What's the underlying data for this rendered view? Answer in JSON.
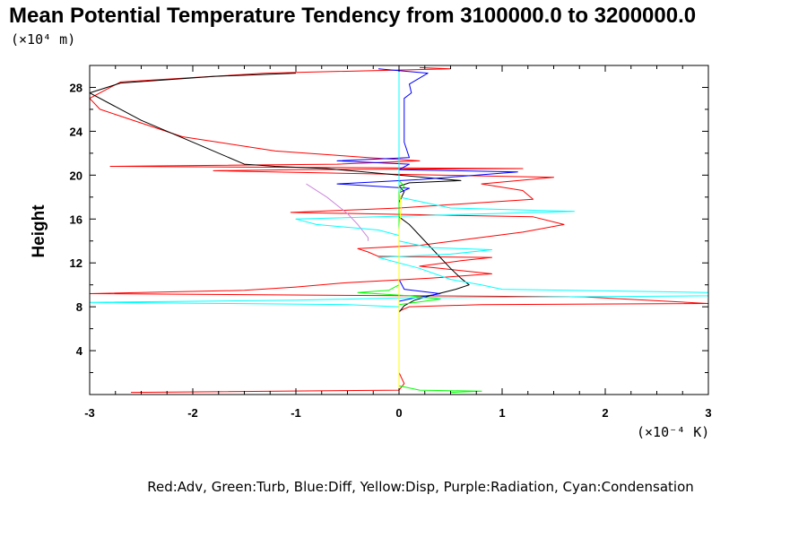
{
  "chart_data": {
    "type": "line",
    "title": "Mean Potential Temperature Tendency from 3100000.0 to 3200000.0",
    "y_scale_note": "(×10⁴ m)",
    "x_scale_note": "(×10⁻⁴ K)",
    "ylabel": "Height",
    "xlim": [
      -3,
      3
    ],
    "ylim": [
      0,
      30
    ],
    "x_ticks": [
      -3,
      -2,
      -1,
      0,
      1,
      2,
      3
    ],
    "x_tick_labels": [
      "-3",
      "-2",
      "-1",
      "0",
      "1",
      "2",
      "3"
    ],
    "y_ticks": [
      4,
      8,
      12,
      16,
      20,
      24,
      28
    ],
    "y_tick_labels": [
      "4",
      "8",
      "12",
      "16",
      "20",
      "24",
      "28"
    ],
    "legend_text": "Red:Adv, Green:Turb, Blue:Diff, Yellow:Disp, Purple:Radiation, Cyan:Condensation",
    "grid": false,
    "series": [
      {
        "color": "#ff0000",
        "points": [
          [
            -2.6,
            0.2
          ],
          [
            0,
            0.4
          ],
          [
            0.05,
            1.0
          ],
          [
            0,
            2.0
          ],
          [
            0,
            6.0
          ],
          [
            0,
            7.6
          ],
          [
            0.1,
            8.0
          ],
          [
            0.8,
            8.2
          ],
          [
            3,
            8.3
          ],
          [
            1.8,
            8.9
          ],
          [
            -3,
            9.2
          ],
          [
            -1.5,
            9.5
          ],
          [
            -1,
            9.8
          ],
          [
            -0.5,
            10.2
          ],
          [
            0.3,
            10.6
          ],
          [
            0.9,
            11.0
          ],
          [
            0.5,
            11.4
          ],
          [
            0.2,
            11.7
          ],
          [
            0.6,
            12.2
          ],
          [
            0.9,
            12.5
          ],
          [
            -0.2,
            12.6
          ],
          [
            -0.3,
            13.0
          ],
          [
            -0.4,
            13.3
          ],
          [
            0.2,
            13.6
          ],
          [
            0.7,
            14.2
          ],
          [
            1.2,
            14.8
          ],
          [
            1.6,
            15.5
          ],
          [
            1.3,
            16.2
          ],
          [
            -1.05,
            16.6
          ],
          [
            0,
            17.0
          ],
          [
            1.3,
            17.8
          ],
          [
            1.2,
            18.6
          ],
          [
            0.8,
            19.2
          ],
          [
            1.5,
            19.8
          ],
          [
            -1.8,
            20.4
          ],
          [
            -1.0,
            20.5
          ],
          [
            1.2,
            20.6
          ],
          [
            -2.8,
            20.8
          ],
          [
            -0.6,
            21.0
          ],
          [
            0.2,
            21.3
          ],
          [
            -0.3,
            21.6
          ],
          [
            -0.6,
            21.8
          ],
          [
            -1.2,
            22.2
          ],
          [
            -2.1,
            23.5
          ],
          [
            -2.9,
            26.0
          ],
          [
            -3.0,
            27.0
          ],
          [
            -2.7,
            28.5
          ],
          [
            -1.3,
            29.3
          ],
          [
            0.5,
            29.7
          ],
          [
            0.2,
            29.8
          ]
        ]
      },
      {
        "color": "#000000",
        "points": [
          [
            0,
            0.2
          ],
          [
            0,
            5.0
          ],
          [
            0,
            7.5
          ],
          [
            0.05,
            8.1
          ],
          [
            0.15,
            8.6
          ],
          [
            0.3,
            9.0
          ],
          [
            0.55,
            9.6
          ],
          [
            0.68,
            10.0
          ],
          [
            0.6,
            10.6
          ],
          [
            0.5,
            11.5
          ],
          [
            0.4,
            12.5
          ],
          [
            0.3,
            13.5
          ],
          [
            0.2,
            14.5
          ],
          [
            0.15,
            15.0
          ],
          [
            0.1,
            15.5
          ],
          [
            0.0,
            16.2
          ],
          [
            0.0,
            17.5
          ],
          [
            0.05,
            18.5
          ],
          [
            0.0,
            19.0
          ],
          [
            0.1,
            19.3
          ],
          [
            0.6,
            19.5
          ],
          [
            -0.7,
            20.6
          ],
          [
            -1.2,
            20.8
          ],
          [
            -1.5,
            21.0
          ],
          [
            -2.0,
            23.0
          ],
          [
            -2.5,
            25.0
          ],
          [
            -3.0,
            27.5
          ],
          [
            -2.7,
            28.4
          ],
          [
            -1.8,
            29.0
          ],
          [
            -1.0,
            29.3
          ]
        ]
      },
      {
        "color": "#0000ff",
        "points": [
          [
            0,
            0.2
          ],
          [
            0,
            8.5
          ],
          [
            0.15,
            8.8
          ],
          [
            0.4,
            9.2
          ],
          [
            0.05,
            9.6
          ],
          [
            0,
            10.5
          ],
          [
            0,
            18.4
          ],
          [
            0.1,
            18.8
          ],
          [
            -0.6,
            19.2
          ],
          [
            0.2,
            19.6
          ],
          [
            1.15,
            20.3
          ],
          [
            0,
            20.5
          ],
          [
            0.1,
            21.0
          ],
          [
            -0.6,
            21.3
          ],
          [
            0.1,
            21.6
          ],
          [
            0.05,
            23.0
          ],
          [
            0.05,
            25.0
          ],
          [
            0.05,
            27.0
          ],
          [
            0.12,
            27.5
          ],
          [
            0.1,
            28.3
          ],
          [
            0.28,
            29.3
          ],
          [
            -0.2,
            29.7
          ]
        ]
      },
      {
        "color": "#00ffff",
        "points": [
          [
            0,
            0.3
          ],
          [
            0,
            8.0
          ],
          [
            -0.5,
            8.2
          ],
          [
            -3.0,
            8.4
          ],
          [
            -1.0,
            8.6
          ],
          [
            0,
            8.8
          ],
          [
            3.0,
            9.0
          ],
          [
            3.0,
            9.3
          ],
          [
            1.0,
            9.6
          ],
          [
            0.8,
            10.0
          ],
          [
            0.5,
            10.5
          ],
          [
            0.2,
            11.5
          ],
          [
            -0.2,
            12.5
          ],
          [
            0.5,
            12.8
          ],
          [
            0.9,
            13.2
          ],
          [
            0.3,
            13.4
          ],
          [
            0,
            14.0
          ],
          [
            0,
            14.5
          ],
          [
            -0.2,
            15.0
          ],
          [
            -0.8,
            15.5
          ],
          [
            -1.0,
            16.0
          ],
          [
            1.7,
            16.7
          ],
          [
            0.5,
            17.0
          ],
          [
            0,
            18.0
          ],
          [
            0,
            20.0
          ],
          [
            0,
            25.0
          ],
          [
            0,
            29.8
          ]
        ]
      },
      {
        "color": "#00ff00",
        "points": [
          [
            0.5,
            0.2
          ],
          [
            0.8,
            0.3
          ],
          [
            0.2,
            0.4
          ],
          [
            0,
            0.8
          ],
          [
            0,
            7.6
          ],
          [
            0,
            8.2
          ],
          [
            0.4,
            8.7
          ],
          [
            0.1,
            9.0
          ],
          [
            -0.4,
            9.3
          ],
          [
            -0.1,
            9.5
          ],
          [
            0,
            10.0
          ],
          [
            0,
            18.5
          ],
          [
            0.05,
            19.0
          ],
          [
            0,
            19.5
          ]
        ]
      },
      {
        "color": "#ffff00",
        "points": [
          [
            0,
            0.2
          ],
          [
            0,
            8.0
          ],
          [
            0,
            12.0
          ],
          [
            0,
            15.0
          ],
          [
            0.02,
            17.0
          ],
          [
            0,
            19.0
          ]
        ]
      },
      {
        "color": "#cc88dd",
        "points": [
          [
            -0.3,
            14.0
          ],
          [
            -0.3,
            14.3
          ],
          [
            -0.4,
            15.5
          ],
          [
            -0.5,
            16.5
          ],
          [
            -0.7,
            18.0
          ],
          [
            -0.9,
            19.2
          ]
        ]
      }
    ]
  }
}
